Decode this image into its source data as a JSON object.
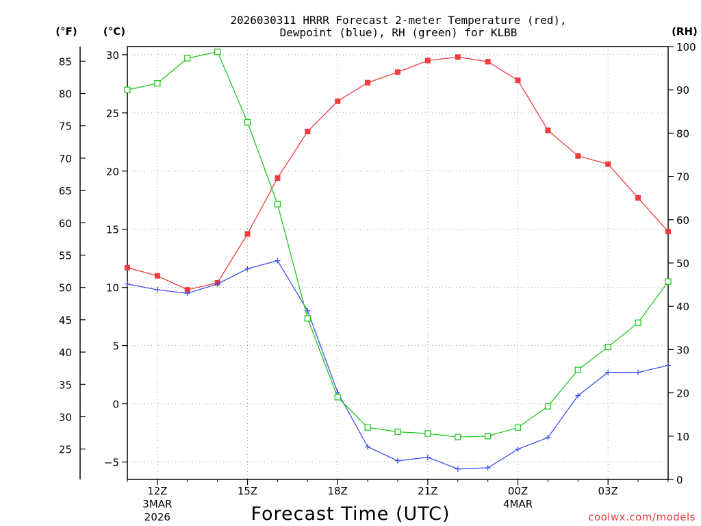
{
  "chart_data": {
    "type": "line",
    "title_line1": "2026030311 HRRR Forecast 2-meter Temperature (red),",
    "title_line2": "Dewpoint (blue), RH (green) for KLBB",
    "xlabel": "Forecast Time (UTC)",
    "left_outer_unit": "(°F)",
    "left_inner_unit": "(°C)",
    "right_unit": "(RH)",
    "watermark": "coolwx.com/models",
    "x_hours": [
      11,
      12,
      13,
      14,
      15,
      16,
      17,
      18,
      19,
      20,
      21,
      22,
      23,
      24,
      25,
      26,
      27,
      28,
      29
    ],
    "x_range": [
      11,
      29
    ],
    "x_ticks": [
      {
        "hour": 12,
        "label": "12Z",
        "date": "3MAR",
        "year": "2026"
      },
      {
        "hour": 15,
        "label": "15Z",
        "date": "",
        "year": ""
      },
      {
        "hour": 18,
        "label": "18Z",
        "date": "",
        "year": ""
      },
      {
        "hour": 21,
        "label": "21Z",
        "date": "",
        "year": ""
      },
      {
        "hour": 24,
        "label": "00Z",
        "date": "4MAR",
        "year": ""
      },
      {
        "hour": 27,
        "label": "03Z",
        "date": "",
        "year": ""
      }
    ],
    "celsius_range": [
      -6.5,
      30.7
    ],
    "celsius_ticks": [
      -5,
      0,
      5,
      10,
      15,
      20,
      25,
      30
    ],
    "fahrenheit_ticks": [
      25,
      30,
      35,
      40,
      45,
      50,
      55,
      60,
      65,
      70,
      75,
      80,
      85
    ],
    "rh_range": [
      0,
      100
    ],
    "rh_ticks": [
      0,
      10,
      20,
      30,
      40,
      50,
      60,
      70,
      80,
      90,
      100
    ],
    "series": [
      {
        "name": "Temperature",
        "axis": "celsius",
        "color": "#f03c3c",
        "marker": "filled-square",
        "values": [
          11.7,
          11.0,
          9.8,
          10.4,
          14.6,
          19.4,
          23.4,
          26.0,
          27.6,
          28.5,
          29.5,
          29.8,
          29.4,
          27.8,
          23.5,
          21.3,
          20.6,
          17.7,
          14.8
        ]
      },
      {
        "name": "Dewpoint",
        "axis": "celsius",
        "color": "#3c50f0",
        "marker": "plus",
        "values": [
          10.3,
          9.8,
          9.5,
          10.3,
          11.6,
          12.3,
          8.0,
          1.0,
          -3.7,
          -4.9,
          -4.6,
          -5.6,
          -5.5,
          -3.9,
          -2.9,
          0.7,
          2.7,
          2.7,
          3.3
        ]
      },
      {
        "name": "RH",
        "axis": "rh",
        "color": "#1ec81e",
        "marker": "open-square",
        "values": [
          90,
          91.5,
          97.3,
          98.8,
          82.5,
          63.6,
          37.2,
          19.0,
          12.0,
          11.0,
          10.6,
          9.8,
          10.0,
          12.0,
          16.9,
          25.3,
          30.6,
          36.2,
          45.7
        ]
      }
    ]
  }
}
